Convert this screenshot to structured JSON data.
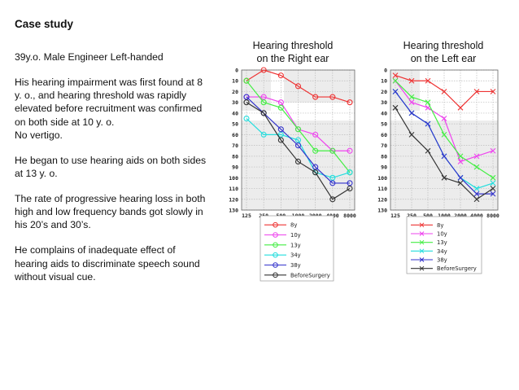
{
  "case": {
    "title": "Case study",
    "paragraphs": [
      "39y.o. Male Engineer Left-handed",
      "His hearing impairment was first found at 8\ny. o., and hearing threshold was rapidly\nelevated before recruitment was confirmed\non both side at 10 y. o.\nNo vertigo.",
      "He began to use hearing aids on both sides\nat 13 y. o.",
      "The rate of progressive hearing loss in both\nhigh and low frequency bands got slowly in\nhis 20’s and 30’s.",
      "He complains of inadequate effect of\nhearing aids to discriminate speech sound\nwithout visual cue."
    ]
  },
  "colors": {
    "8y": "#ee3333",
    "10y": "#ee44ee",
    "13y": "#44ee44",
    "34y": "#22dddd",
    "38y": "#3333cc",
    "BeforeSurgery": "#333333"
  },
  "chart_data": [
    {
      "type": "line",
      "title": "Hearing threshold\non the Right ear",
      "marker": "circle",
      "x": [
        "125",
        "250",
        "500",
        "1000",
        "2000",
        "4000",
        "8000"
      ],
      "yticks": [
        "0",
        "10",
        "20",
        "30",
        "40",
        "50",
        "60",
        "70",
        "80",
        "90",
        "100",
        "110",
        "120",
        "130"
      ],
      "ylim": [
        130,
        0
      ],
      "y_inverted": true,
      "grid": true,
      "legend_placement": "bottom",
      "series": [
        {
          "name": "8y",
          "values": [
            10,
            0,
            5,
            15,
            25,
            25,
            30
          ]
        },
        {
          "name": "10y",
          "values": [
            25,
            25,
            30,
            55,
            60,
            75,
            75
          ]
        },
        {
          "name": "13y",
          "values": [
            10,
            30,
            35,
            55,
            75,
            75,
            95
          ]
        },
        {
          "name": "34y",
          "values": [
            45,
            60,
            60,
            65,
            95,
            100,
            95
          ]
        },
        {
          "name": "38y",
          "values": [
            25,
            40,
            55,
            70,
            90,
            105,
            105
          ]
        },
        {
          "name": "BeforeSurgery",
          "values": [
            30,
            40,
            65,
            85,
            95,
            120,
            110
          ]
        }
      ]
    },
    {
      "type": "line",
      "title": "Hearing threshold\non the Left ear",
      "marker": "x",
      "x": [
        "125",
        "250",
        "500",
        "1000",
        "2000",
        "4000",
        "8000"
      ],
      "yticks": [
        "0",
        "10",
        "20",
        "30",
        "40",
        "50",
        "60",
        "70",
        "80",
        "90",
        "100",
        "110",
        "120",
        "130"
      ],
      "ylim": [
        130,
        0
      ],
      "y_inverted": true,
      "grid": true,
      "legend_placement": "bottom",
      "series": [
        {
          "name": "8y",
          "values": [
            5,
            10,
            10,
            20,
            35,
            20,
            20
          ]
        },
        {
          "name": "10y",
          "values": [
            10,
            30,
            35,
            45,
            85,
            80,
            75
          ]
        },
        {
          "name": "13y",
          "values": [
            10,
            25,
            30,
            60,
            80,
            90,
            100
          ]
        },
        {
          "name": "34y",
          "values": [
            20,
            40,
            50,
            80,
            100,
            110,
            105
          ]
        },
        {
          "name": "38y",
          "values": [
            20,
            40,
            50,
            80,
            100,
            115,
            115
          ]
        },
        {
          "name": "BeforeSurgery",
          "values": [
            35,
            60,
            75,
            100,
            105,
            120,
            110
          ]
        }
      ]
    }
  ]
}
